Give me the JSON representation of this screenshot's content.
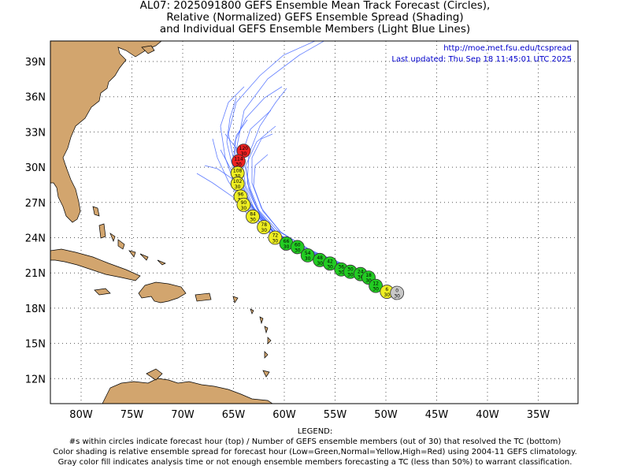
{
  "title": {
    "line1": "AL07: 2025091800 GEFS Ensemble Mean Track Forecast (Circles),",
    "line2": "Relative (Normalized) GEFS Ensemble Spread (Shading)",
    "line3": "and Individual GEFS Ensemble Members (Light Blue Lines)"
  },
  "info": {
    "url": "http://moe.met.fsu.edu/tcspread",
    "updated": "Last updated: Thu Sep 18 11:45:01 UTC 2025"
  },
  "axes": {
    "lat_labels": [
      "39N",
      "36N",
      "33N",
      "30N",
      "27N",
      "24N",
      "21N",
      "18N",
      "15N",
      "12N"
    ],
    "lon_labels": [
      "80W",
      "75W",
      "70W",
      "65W",
      "60W",
      "55W",
      "50W",
      "45W",
      "40W",
      "35W"
    ]
  },
  "legend": {
    "heading": "LEGEND:",
    "line1": "#s within circles indicate forecast hour (top) / Number of GEFS ensemble members (out of 30) that resolved the TC (bottom)",
    "line2": "Color shading is relative ensemble spread for forecast hour (Low=Green,Normal=Yellow,High=Red) using 2004-11 GEFS climatology.",
    "line3": "Gray color fill indicates analysis time or not enough ensemble members forecasting a TC (less than 50%) to warrant classification."
  },
  "colors": {
    "low": "#22cc22",
    "normal": "#eeee22",
    "high": "#ee2222",
    "gray": "#c8c8c8",
    "land": "#d2a56e",
    "member": "#4466ff"
  },
  "track": [
    {
      "hour": "0",
      "members": "30",
      "lon": -48.9,
      "lat": 19.3,
      "spread": "gray"
    },
    {
      "hour": "6",
      "members": "30",
      "lon": -49.9,
      "lat": 19.4,
      "spread": "normal"
    },
    {
      "hour": "12",
      "members": "30",
      "lon": -51.0,
      "lat": 19.9,
      "spread": "low"
    },
    {
      "hour": "18",
      "members": "30",
      "lon": -51.7,
      "lat": 20.6,
      "spread": "low"
    },
    {
      "hour": "24",
      "members": "30",
      "lon": -52.5,
      "lat": 20.9,
      "spread": "low"
    },
    {
      "hour": "30",
      "members": "30",
      "lon": -53.5,
      "lat": 21.1,
      "spread": "low"
    },
    {
      "hour": "36",
      "members": "30",
      "lon": -54.4,
      "lat": 21.3,
      "spread": "low"
    },
    {
      "hour": "42",
      "members": "30",
      "lon": -55.5,
      "lat": 21.8,
      "spread": "low"
    },
    {
      "hour": "48",
      "members": "30",
      "lon": -56.5,
      "lat": 22.1,
      "spread": "low"
    },
    {
      "hour": "54",
      "members": "30",
      "lon": -57.7,
      "lat": 22.5,
      "spread": "low"
    },
    {
      "hour": "60",
      "members": "30",
      "lon": -58.7,
      "lat": 23.2,
      "spread": "low"
    },
    {
      "hour": "66",
      "members": "30",
      "lon": -59.8,
      "lat": 23.5,
      "spread": "low"
    },
    {
      "hour": "72",
      "members": "30",
      "lon": -60.9,
      "lat": 24.0,
      "spread": "normal"
    },
    {
      "hour": "78",
      "members": "30",
      "lon": -62.0,
      "lat": 24.9,
      "spread": "normal"
    },
    {
      "hour": "84",
      "members": "30",
      "lon": -63.1,
      "lat": 25.8,
      "spread": "normal"
    },
    {
      "hour": "90",
      "members": "30",
      "lon": -64.0,
      "lat": 26.8,
      "spread": "normal"
    },
    {
      "hour": "96",
      "members": "30",
      "lon": -64.3,
      "lat": 27.5,
      "spread": "normal"
    },
    {
      "hour": "102",
      "members": "30",
      "lon": -64.6,
      "lat": 28.6,
      "spread": "normal"
    },
    {
      "hour": "108",
      "members": "30",
      "lon": -64.6,
      "lat": 29.5,
      "spread": "normal"
    },
    {
      "hour": "114",
      "members": "30",
      "lon": -64.5,
      "lat": 30.5,
      "spread": "high"
    },
    {
      "hour": "120",
      "members": "30",
      "lon": -64.0,
      "lat": 31.4,
      "spread": "high"
    }
  ]
}
